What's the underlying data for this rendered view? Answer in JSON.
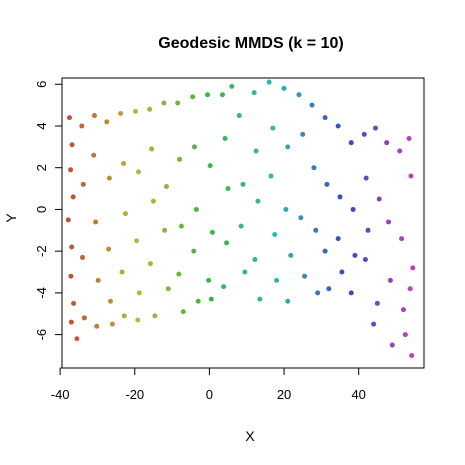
{
  "chart_data": {
    "type": "scatter",
    "title": "Geodesic MMDS (k = 10)",
    "xlabel": "X",
    "ylabel": "Y",
    "xlim": [
      -39.5,
      57.5
    ],
    "ylim": [
      -7.6,
      6.3
    ],
    "x_ticks": [
      -40,
      -20,
      0,
      20,
      40
    ],
    "y_ticks": [
      -6,
      -4,
      -2,
      0,
      2,
      4,
      6
    ],
    "grid": false,
    "legend": "none",
    "color_encoding": "rainbow hue along X, from red/orange at left through yellow, green, cyan, blue to purple at right",
    "color_stops": [
      "#c0502e",
      "#b8b83a",
      "#3cb83c",
      "#30b8b0",
      "#3a48c0",
      "#c040c0"
    ],
    "point_count_approx": 1000,
    "series": [
      {
        "values": [
          {
            "x": -37.5,
            "y": 4.4
          },
          {
            "x": -36.8,
            "y": 3.1
          },
          {
            "x": -37.2,
            "y": 1.9
          },
          {
            "x": -36.5,
            "y": 0.6
          },
          {
            "x": -37.8,
            "y": -0.5
          },
          {
            "x": -36.9,
            "y": -1.8
          },
          {
            "x": -37.1,
            "y": -3.2
          },
          {
            "x": -36.4,
            "y": -4.5
          },
          {
            "x": -37.0,
            "y": -5.4
          },
          {
            "x": -35.5,
            "y": -6.2
          },
          {
            "x": -34.2,
            "y": 4.0
          },
          {
            "x": -33.8,
            "y": 1.2
          },
          {
            "x": -34.0,
            "y": -2.3
          },
          {
            "x": -33.5,
            "y": -5.2
          },
          {
            "x": -30.8,
            "y": 4.5
          },
          {
            "x": -31.0,
            "y": 2.6
          },
          {
            "x": -30.5,
            "y": -0.6
          },
          {
            "x": -29.8,
            "y": -3.4
          },
          {
            "x": -30.2,
            "y": -5.6
          },
          {
            "x": -27.5,
            "y": 4.2
          },
          {
            "x": -26.8,
            "y": 1.5
          },
          {
            "x": -27.0,
            "y": -1.9
          },
          {
            "x": -26.5,
            "y": -4.4
          },
          {
            "x": -26.0,
            "y": -5.5
          },
          {
            "x": -23.8,
            "y": 4.6
          },
          {
            "x": -23.0,
            "y": 2.2
          },
          {
            "x": -22.5,
            "y": -0.2
          },
          {
            "x": -23.4,
            "y": -3.0
          },
          {
            "x": -22.8,
            "y": -5.1
          },
          {
            "x": -19.8,
            "y": 4.7
          },
          {
            "x": -19.0,
            "y": 1.8
          },
          {
            "x": -19.5,
            "y": -1.5
          },
          {
            "x": -18.8,
            "y": -4.0
          },
          {
            "x": -19.2,
            "y": -5.3
          },
          {
            "x": -16.0,
            "y": 4.8
          },
          {
            "x": -15.5,
            "y": 2.9
          },
          {
            "x": -15.0,
            "y": 0.4
          },
          {
            "x": -15.8,
            "y": -2.6
          },
          {
            "x": -14.6,
            "y": -5.1
          },
          {
            "x": -12.2,
            "y": 5.1
          },
          {
            "x": -11.5,
            "y": 1.1
          },
          {
            "x": -12.0,
            "y": -1.0
          },
          {
            "x": -11.0,
            "y": -3.8
          },
          {
            "x": -8.5,
            "y": 5.1
          },
          {
            "x": -8.0,
            "y": 2.4
          },
          {
            "x": -7.5,
            "y": -0.8
          },
          {
            "x": -8.2,
            "y": -3.1
          },
          {
            "x": -7.0,
            "y": -4.9
          },
          {
            "x": -4.5,
            "y": 5.4
          },
          {
            "x": -4.0,
            "y": 3.0
          },
          {
            "x": -3.5,
            "y": 0.0
          },
          {
            "x": -4.2,
            "y": -2.0
          },
          {
            "x": -3.0,
            "y": -4.4
          },
          {
            "x": -0.5,
            "y": 5.5
          },
          {
            "x": 0.2,
            "y": 2.1
          },
          {
            "x": 0.8,
            "y": -1.1
          },
          {
            "x": -0.2,
            "y": -3.4
          },
          {
            "x": 0.5,
            "y": -4.3
          },
          {
            "x": 3.5,
            "y": 5.5
          },
          {
            "x": 4.2,
            "y": 3.4
          },
          {
            "x": 5.0,
            "y": 1.0
          },
          {
            "x": 4.6,
            "y": -1.6
          },
          {
            "x": 3.8,
            "y": -3.7
          },
          {
            "x": 6.0,
            "y": 5.9
          },
          {
            "x": 8.0,
            "y": 4.5
          },
          {
            "x": 9.0,
            "y": 1.2
          },
          {
            "x": 8.5,
            "y": -0.8
          },
          {
            "x": 9.5,
            "y": -3.0
          },
          {
            "x": 12.0,
            "y": 5.6
          },
          {
            "x": 12.5,
            "y": 2.8
          },
          {
            "x": 13.0,
            "y": 0.4
          },
          {
            "x": 12.2,
            "y": -2.4
          },
          {
            "x": 13.5,
            "y": -4.3
          },
          {
            "x": 16.0,
            "y": 6.1
          },
          {
            "x": 17.0,
            "y": 3.9
          },
          {
            "x": 16.5,
            "y": 1.6
          },
          {
            "x": 17.5,
            "y": -1.2
          },
          {
            "x": 18.0,
            "y": -3.4
          },
          {
            "x": 20.0,
            "y": 5.8
          },
          {
            "x": 21.0,
            "y": 3.0
          },
          {
            "x": 20.5,
            "y": 0.0
          },
          {
            "x": 21.8,
            "y": -2.2
          },
          {
            "x": 21.0,
            "y": -4.4
          },
          {
            "x": 24.0,
            "y": 5.5
          },
          {
            "x": 25.0,
            "y": 3.6
          },
          {
            "x": 24.5,
            "y": -0.4
          },
          {
            "x": 25.5,
            "y": -3.2
          },
          {
            "x": 27.5,
            "y": 5.0
          },
          {
            "x": 28.0,
            "y": 2.0
          },
          {
            "x": 28.5,
            "y": -1.0
          },
          {
            "x": 29.0,
            "y": -4.0
          },
          {
            "x": 31.0,
            "y": 4.4
          },
          {
            "x": 31.5,
            "y": 1.2
          },
          {
            "x": 31.0,
            "y": -2.0
          },
          {
            "x": 32.0,
            "y": -3.8
          },
          {
            "x": 34.5,
            "y": 4.0
          },
          {
            "x": 35.0,
            "y": 0.6
          },
          {
            "x": 34.5,
            "y": -1.4
          },
          {
            "x": 35.5,
            "y": -3.0
          },
          {
            "x": 38.0,
            "y": 3.2
          },
          {
            "x": 38.5,
            "y": 0.0
          },
          {
            "x": 39.0,
            "y": -2.2
          },
          {
            "x": 38.0,
            "y": -4.0
          },
          {
            "x": 41.5,
            "y": 3.6
          },
          {
            "x": 42.0,
            "y": 1.5
          },
          {
            "x": 42.5,
            "y": -1.0
          },
          {
            "x": 41.8,
            "y": -2.4
          },
          {
            "x": 44.5,
            "y": 3.9
          },
          {
            "x": 45.5,
            "y": 0.5
          },
          {
            "x": 45.0,
            "y": -4.5
          },
          {
            "x": 44.0,
            "y": -5.5
          },
          {
            "x": 47.5,
            "y": 3.2
          },
          {
            "x": 48.0,
            "y": -0.6
          },
          {
            "x": 48.5,
            "y": -3.4
          },
          {
            "x": 49.0,
            "y": -6.5
          },
          {
            "x": 51.0,
            "y": 2.8
          },
          {
            "x": 51.5,
            "y": -1.4
          },
          {
            "x": 52.0,
            "y": -4.8
          },
          {
            "x": 52.5,
            "y": -6.0
          },
          {
            "x": 53.5,
            "y": 3.4
          },
          {
            "x": 54.0,
            "y": 1.6
          },
          {
            "x": 54.5,
            "y": -2.8
          },
          {
            "x": 53.8,
            "y": -3.8
          },
          {
            "x": 54.2,
            "y": -7.0
          }
        ]
      }
    ]
  }
}
